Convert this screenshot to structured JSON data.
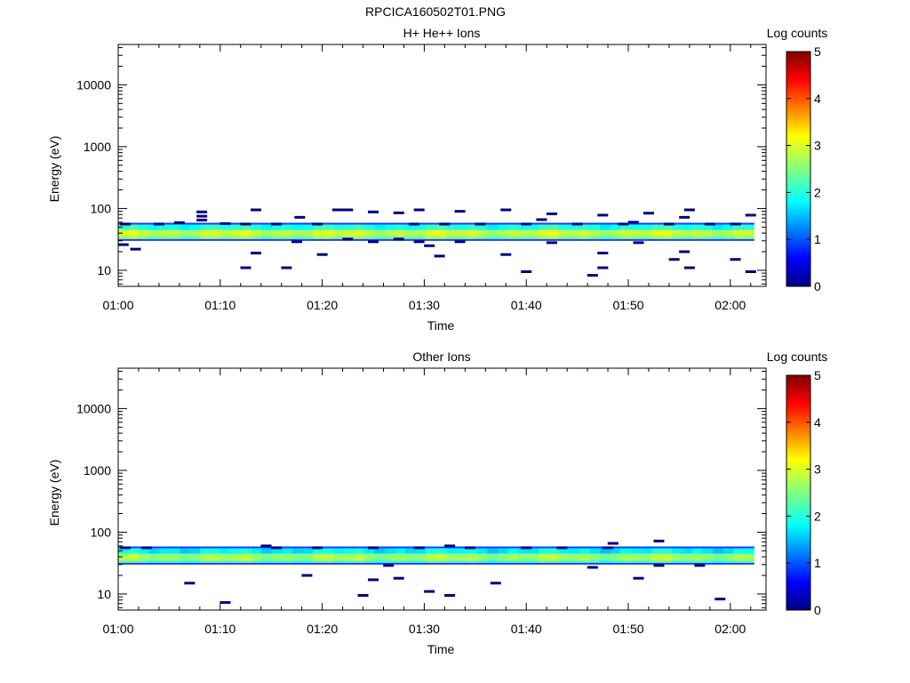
{
  "page_title": "RPCICA160502T01.PNG",
  "chart_data": [
    {
      "type": "heatmap",
      "title": "H+ He++ Ions",
      "xlabel": "Time",
      "ylabel": "Energy (eV)",
      "colorbar_label": "Log counts",
      "x_ticks": [
        "01:00",
        "01:10",
        "01:20",
        "01:30",
        "01:40",
        "01:50",
        "02:00"
      ],
      "x_range_minutes": [
        0,
        63.5
      ],
      "y_scale": "log",
      "y_range": [
        5.5,
        45000
      ],
      "y_ticks": [
        "10",
        "100",
        "1000",
        "10000"
      ],
      "colorbar_range": [
        0,
        5
      ],
      "colorbar_ticks": [
        "0",
        "1",
        "2",
        "3",
        "4",
        "5"
      ],
      "band_center_eV": 40,
      "band_edges_eV": [
        32,
        36,
        45,
        55
      ],
      "band_mean_level": [
        2.6,
        3.1
      ],
      "sparse_points": [
        {
          "t": 0.7,
          "e": 56
        },
        {
          "t": 0.5,
          "e": 26
        },
        {
          "t": 1.7,
          "e": 22
        },
        {
          "t": 4.0,
          "e": 56
        },
        {
          "t": 6.0,
          "e": 59
        },
        {
          "t": 8.2,
          "e": 88
        },
        {
          "t": 8.2,
          "e": 75
        },
        {
          "t": 8.2,
          "e": 65
        },
        {
          "t": 10.5,
          "e": 57
        },
        {
          "t": 12.5,
          "e": 56
        },
        {
          "t": 13.5,
          "e": 95
        },
        {
          "t": 12.5,
          "e": 11
        },
        {
          "t": 13.5,
          "e": 19
        },
        {
          "t": 15.5,
          "e": 56
        },
        {
          "t": 16.5,
          "e": 11
        },
        {
          "t": 17.8,
          "e": 72
        },
        {
          "t": 17.5,
          "e": 29
        },
        {
          "t": 19.5,
          "e": 56
        },
        {
          "t": 20.0,
          "e": 18
        },
        {
          "t": 21.5,
          "e": 95
        },
        {
          "t": 22.5,
          "e": 95
        },
        {
          "t": 22.5,
          "e": 32
        },
        {
          "t": 25.0,
          "e": 88
        },
        {
          "t": 25.0,
          "e": 29
        },
        {
          "t": 27.5,
          "e": 85
        },
        {
          "t": 27.5,
          "e": 32
        },
        {
          "t": 29.0,
          "e": 56
        },
        {
          "t": 29.5,
          "e": 95
        },
        {
          "t": 29.5,
          "e": 29
        },
        {
          "t": 30.5,
          "e": 25
        },
        {
          "t": 31.5,
          "e": 17
        },
        {
          "t": 32.0,
          "e": 56
        },
        {
          "t": 33.5,
          "e": 90
        },
        {
          "t": 33.5,
          "e": 29
        },
        {
          "t": 35.5,
          "e": 56
        },
        {
          "t": 38.0,
          "e": 95
        },
        {
          "t": 38.0,
          "e": 18
        },
        {
          "t": 40.0,
          "e": 56
        },
        {
          "t": 40.0,
          "e": 9.5
        },
        {
          "t": 41.5,
          "e": 66
        },
        {
          "t": 42.5,
          "e": 82
        },
        {
          "t": 42.5,
          "e": 28
        },
        {
          "t": 45.0,
          "e": 56
        },
        {
          "t": 46.5,
          "e": 8.3
        },
        {
          "t": 47.5,
          "e": 78
        },
        {
          "t": 47.5,
          "e": 11
        },
        {
          "t": 47.5,
          "e": 19
        },
        {
          "t": 49.5,
          "e": 56
        },
        {
          "t": 50.5,
          "e": 60
        },
        {
          "t": 51.0,
          "e": 28
        },
        {
          "t": 52.0,
          "e": 84
        },
        {
          "t": 54.0,
          "e": 56
        },
        {
          "t": 54.5,
          "e": 15
        },
        {
          "t": 55.5,
          "e": 72
        },
        {
          "t": 55.5,
          "e": 20
        },
        {
          "t": 56.0,
          "e": 95
        },
        {
          "t": 56.0,
          "e": 11
        },
        {
          "t": 58.0,
          "e": 56
        },
        {
          "t": 60.5,
          "e": 56
        },
        {
          "t": 60.5,
          "e": 15
        },
        {
          "t": 62.0,
          "e": 78
        },
        {
          "t": 62.0,
          "e": 9.5
        }
      ]
    },
    {
      "type": "heatmap",
      "title": "Other Ions",
      "xlabel": "Time",
      "ylabel": "Energy (eV)",
      "colorbar_label": "Log counts",
      "x_ticks": [
        "01:00",
        "01:10",
        "01:20",
        "01:30",
        "01:40",
        "01:50",
        "02:00"
      ],
      "x_range_minutes": [
        0,
        63.5
      ],
      "y_scale": "log",
      "y_range": [
        5.5,
        45000
      ],
      "y_ticks": [
        "10",
        "100",
        "1000",
        "10000"
      ],
      "colorbar_range": [
        0,
        5
      ],
      "colorbar_ticks": [
        "0",
        "1",
        "2",
        "3",
        "4",
        "5"
      ],
      "band_center_eV": 40,
      "band_edges_eV": [
        32,
        36,
        45,
        55
      ],
      "band_mean_level": [
        2.4,
        2.9
      ],
      "sparse_points": [
        {
          "t": 0.7,
          "e": 56
        },
        {
          "t": 2.8,
          "e": 56
        },
        {
          "t": 7.0,
          "e": 15
        },
        {
          "t": 10.5,
          "e": 7.3
        },
        {
          "t": 14.5,
          "e": 60
        },
        {
          "t": 15.5,
          "e": 56
        },
        {
          "t": 18.5,
          "e": 20
        },
        {
          "t": 19.5,
          "e": 56
        },
        {
          "t": 24.0,
          "e": 9.5
        },
        {
          "t": 25.0,
          "e": 56
        },
        {
          "t": 25.0,
          "e": 17
        },
        {
          "t": 26.5,
          "e": 29
        },
        {
          "t": 27.5,
          "e": 18
        },
        {
          "t": 29.5,
          "e": 56
        },
        {
          "t": 30.5,
          "e": 11
        },
        {
          "t": 32.5,
          "e": 60
        },
        {
          "t": 32.5,
          "e": 9.5
        },
        {
          "t": 34.5,
          "e": 56
        },
        {
          "t": 37.0,
          "e": 15
        },
        {
          "t": 40.0,
          "e": 56
        },
        {
          "t": 43.5,
          "e": 56
        },
        {
          "t": 46.5,
          "e": 27
        },
        {
          "t": 48.0,
          "e": 56
        },
        {
          "t": 48.5,
          "e": 66
        },
        {
          "t": 51.0,
          "e": 18
        },
        {
          "t": 53.0,
          "e": 72
        },
        {
          "t": 53.0,
          "e": 29
        },
        {
          "t": 57.0,
          "e": 29
        },
        {
          "t": 59.0,
          "e": 8.3
        }
      ]
    }
  ]
}
